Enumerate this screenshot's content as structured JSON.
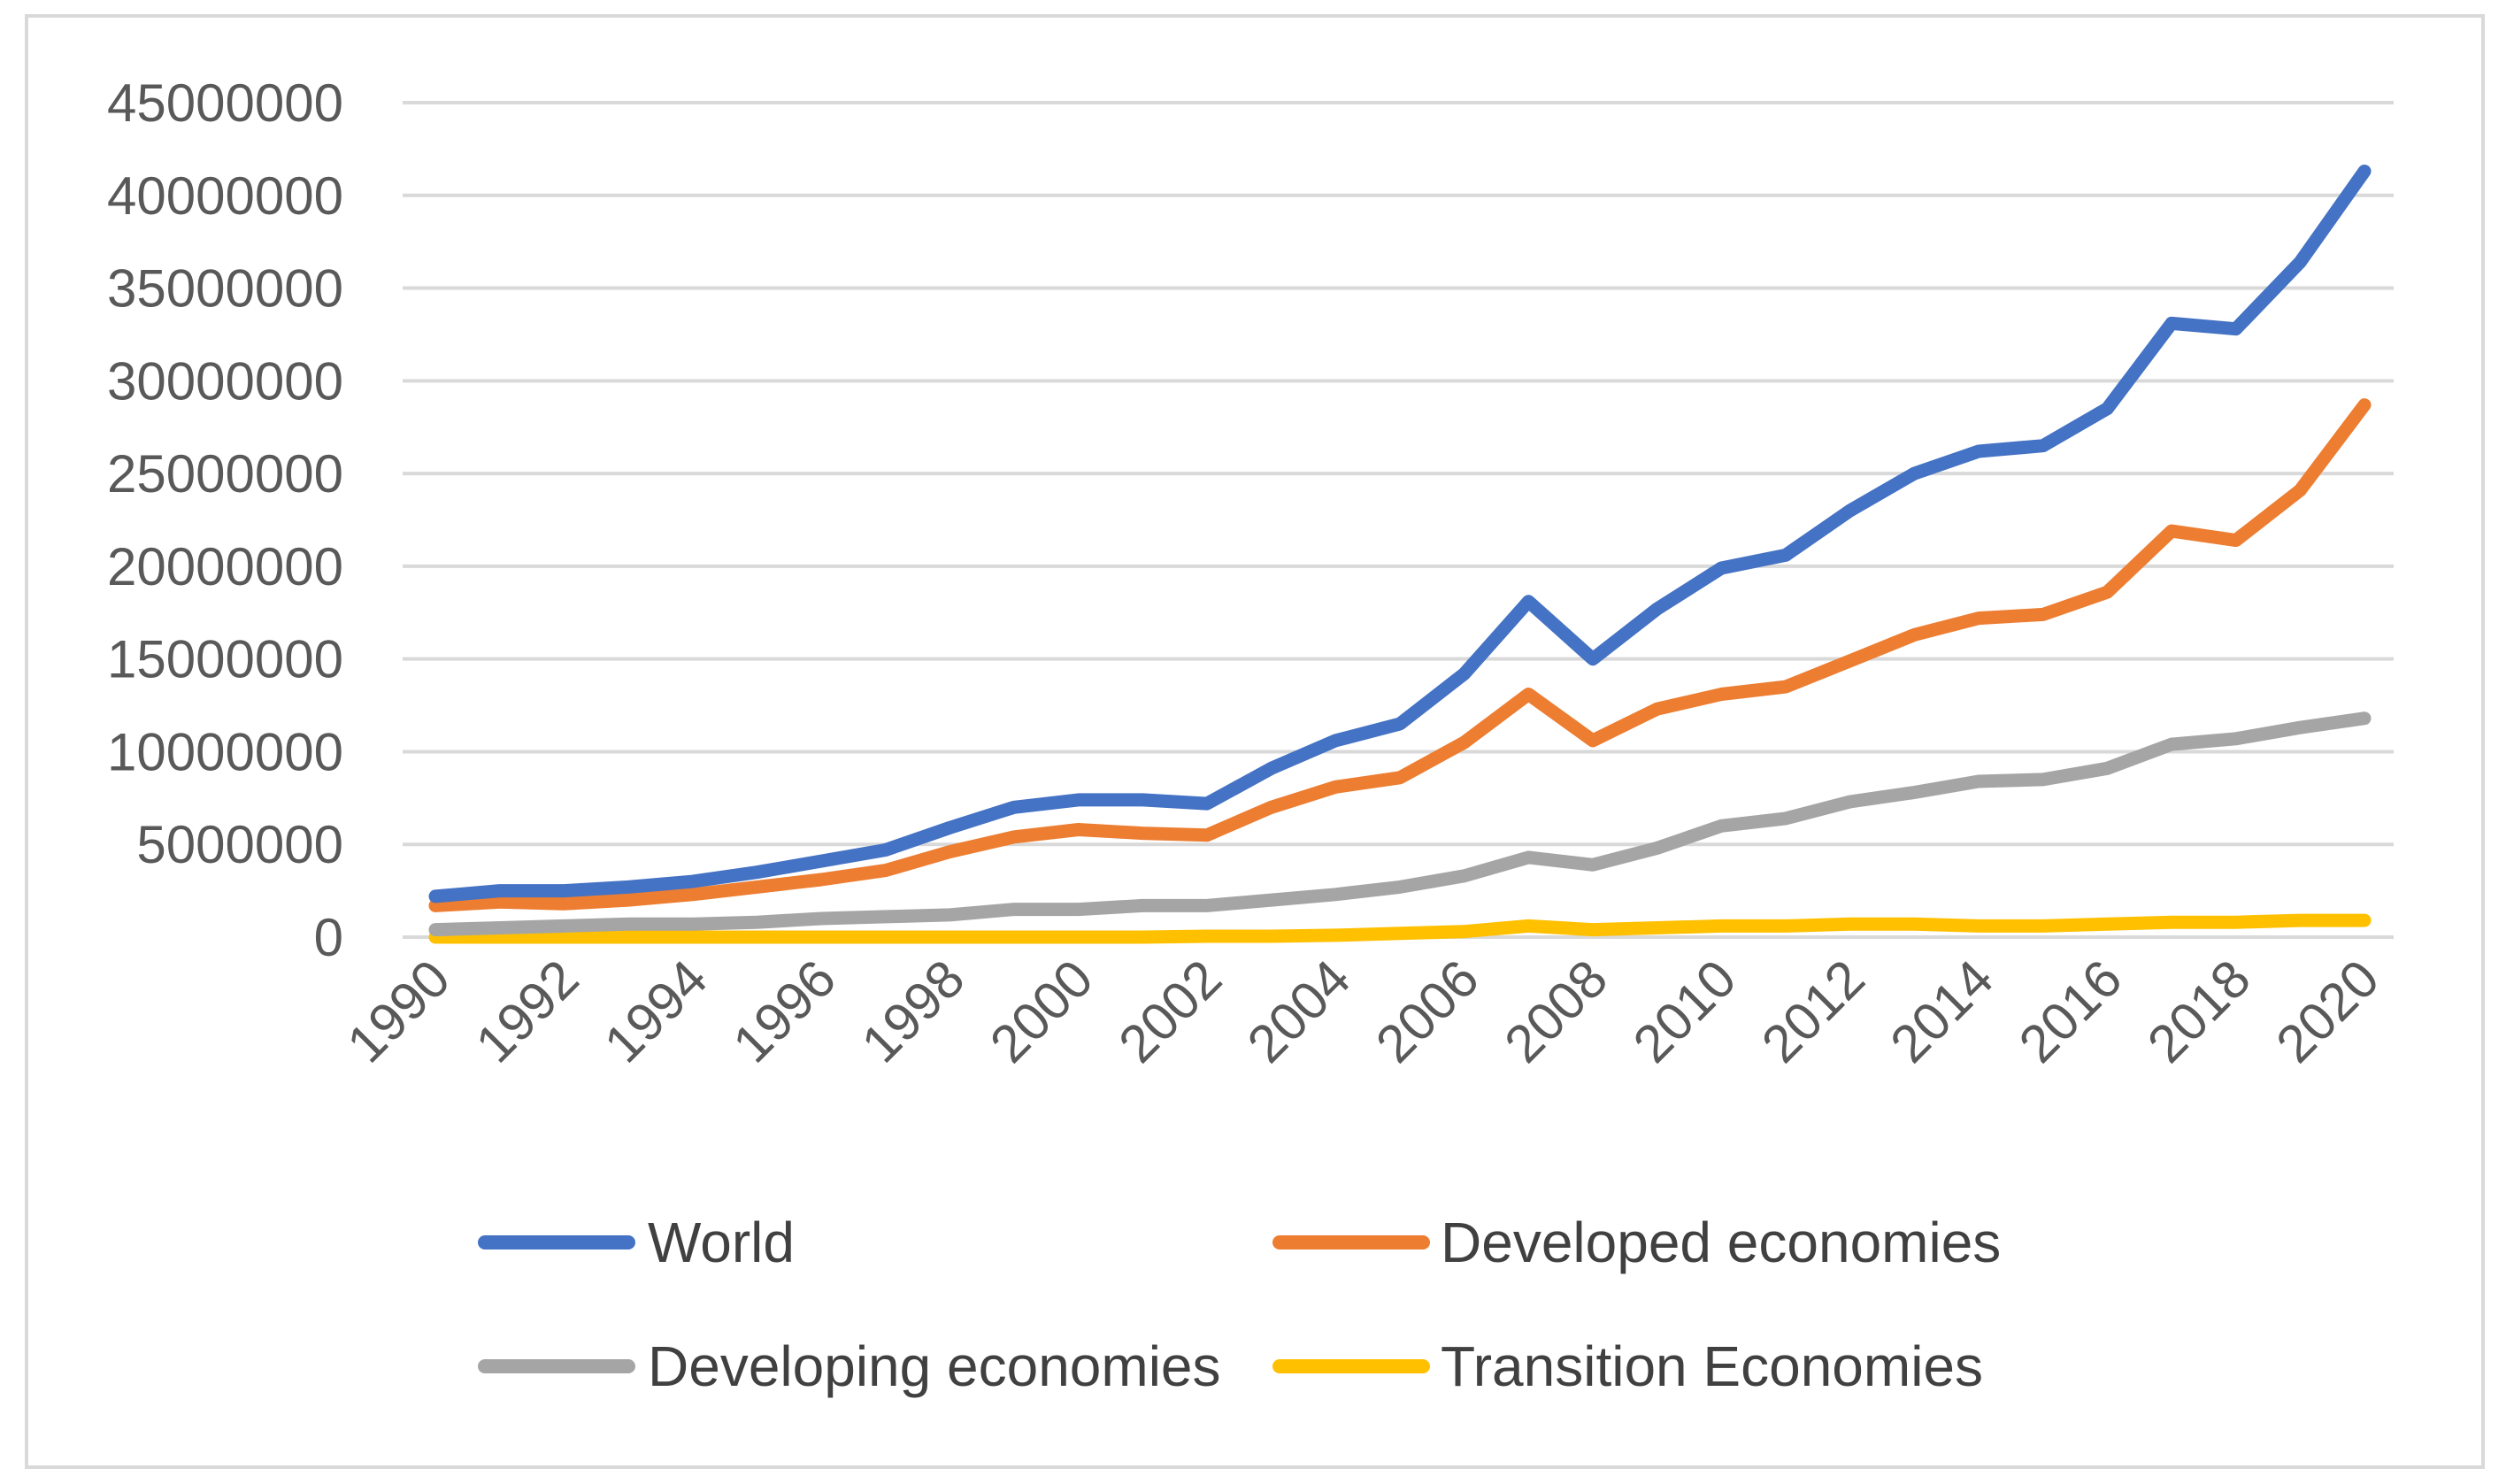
{
  "chart_data": {
    "type": "line",
    "title": "",
    "xlabel": "",
    "ylabel": "",
    "ylim": [
      0,
      45000000
    ],
    "yticks": [
      "0",
      "5000000",
      "10000000",
      "15000000",
      "20000000",
      "25000000",
      "30000000",
      "35000000",
      "40000000",
      "45000000"
    ],
    "xtick_labels": [
      "1990",
      "1992",
      "1994",
      "1996",
      "1998",
      "2000",
      "2002",
      "2004",
      "2006",
      "2008",
      "2010",
      "2012",
      "2014",
      "2016",
      "2018",
      "2020"
    ],
    "grid": true,
    "legend_position": "bottom",
    "x": [
      1990,
      1991,
      1992,
      1993,
      1994,
      1995,
      1996,
      1997,
      1998,
      1999,
      2000,
      2001,
      2002,
      2003,
      2004,
      2005,
      2006,
      2007,
      2008,
      2009,
      2010,
      2011,
      2012,
      2013,
      2014,
      2015,
      2016,
      2017,
      2018,
      2019,
      2020
    ],
    "series": [
      {
        "name": "World",
        "color": "#4472c4",
        "values": [
          2200000,
          2500000,
          2500000,
          2700000,
          3000000,
          3500000,
          4100000,
          4700000,
          5900000,
          7000000,
          7400000,
          7400000,
          7200000,
          9100000,
          10600000,
          11500000,
          14200000,
          18100000,
          15000000,
          17700000,
          19900000,
          20600000,
          23000000,
          25000000,
          26200000,
          26500000,
          28500000,
          33100000,
          32800000,
          36400000,
          41300000
        ]
      },
      {
        "name": "Developed economies",
        "color": "#ed7d31",
        "values": [
          1700000,
          1900000,
          1800000,
          2000000,
          2300000,
          2700000,
          3100000,
          3600000,
          4600000,
          5400000,
          5800000,
          5600000,
          5500000,
          7000000,
          8100000,
          8600000,
          10500000,
          13100000,
          10600000,
          12300000,
          13100000,
          13500000,
          14900000,
          16300000,
          17200000,
          17400000,
          18600000,
          21900000,
          21400000,
          24100000,
          28700000
        ]
      },
      {
        "name": "Developing economies",
        "color": "#a5a5a5",
        "values": [
          400000,
          500000,
          600000,
          700000,
          700000,
          800000,
          1000000,
          1100000,
          1200000,
          1500000,
          1500000,
          1700000,
          1700000,
          2000000,
          2300000,
          2700000,
          3300000,
          4300000,
          3900000,
          4800000,
          6000000,
          6400000,
          7300000,
          7800000,
          8400000,
          8500000,
          9100000,
          10400000,
          10700000,
          11300000,
          11800000
        ]
      },
      {
        "name": "Transition Economies",
        "color": "#ffc000",
        "values": [
          0,
          0,
          0,
          0,
          0,
          0,
          0,
          0,
          0,
          0,
          0,
          0,
          50000,
          50000,
          100000,
          200000,
          300000,
          600000,
          400000,
          500000,
          600000,
          600000,
          700000,
          700000,
          600000,
          600000,
          700000,
          800000,
          800000,
          900000,
          900000
        ]
      }
    ]
  }
}
